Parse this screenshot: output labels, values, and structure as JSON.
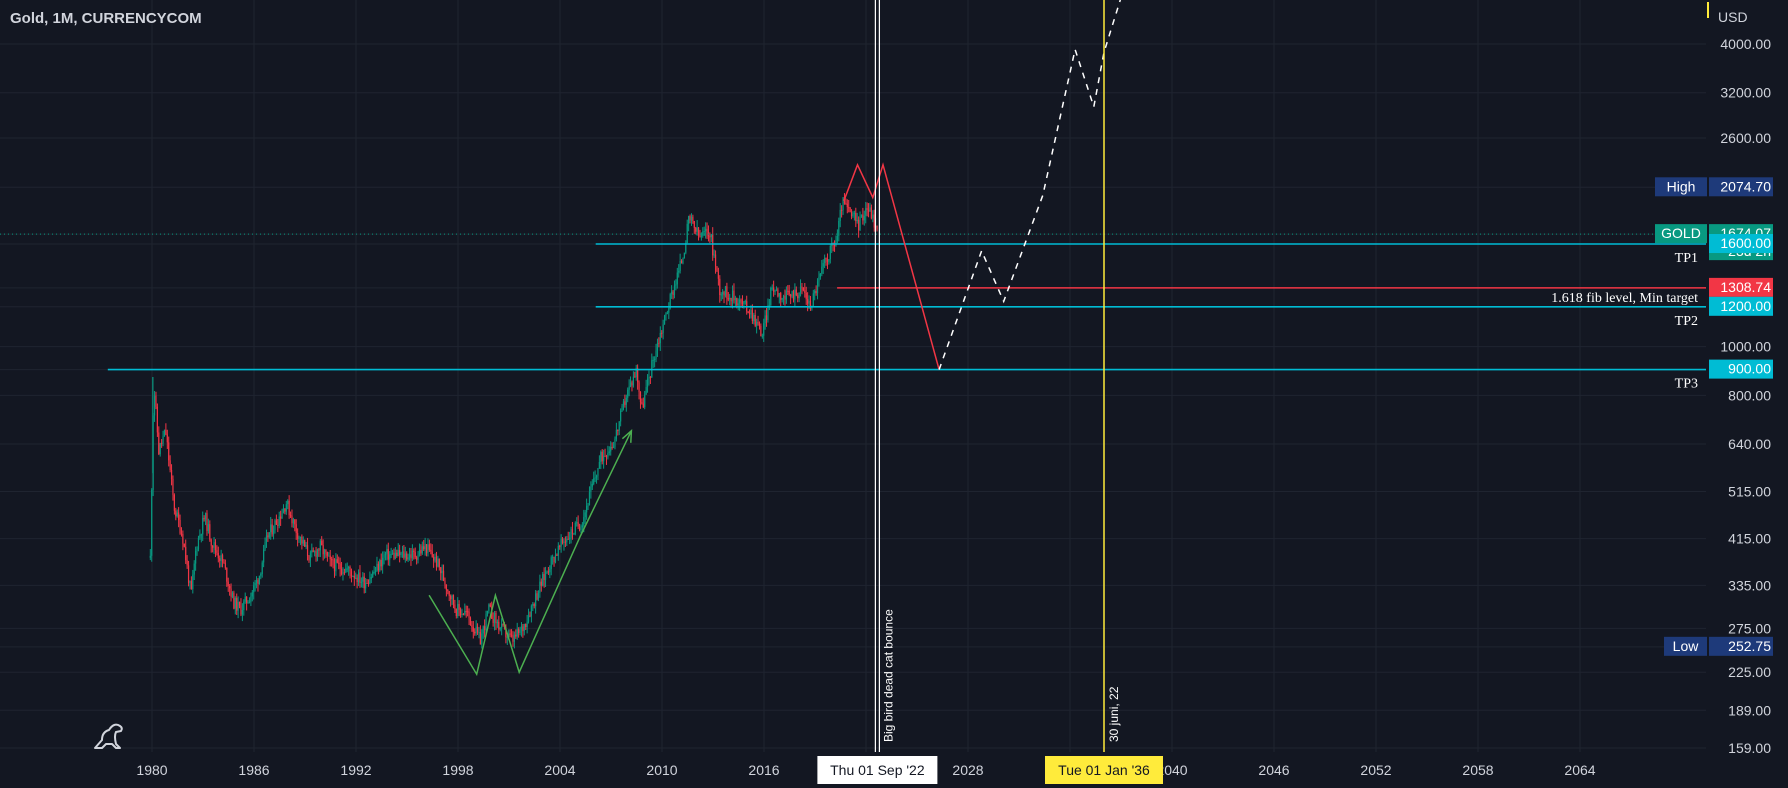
{
  "header": {
    "title": "Gold, 1M, CURRENCYCOM"
  },
  "chart_data": {
    "type": "candlestick",
    "symbol": "GOLD",
    "interval": "1M",
    "source": "CURRENCYCOM",
    "yscale": "log",
    "currency": "USD",
    "x_range": [
      1977.3,
      2071.2
    ],
    "y_range": [
      158,
      5000
    ],
    "x_ticks": [
      "1980",
      "1986",
      "1992",
      "1998",
      "2004",
      "2010",
      "2016",
      "2022",
      "2028",
      "2034",
      "2040",
      "2046",
      "2052",
      "2058",
      "2064"
    ],
    "y_ticks": [
      "4000.00",
      "3200.00",
      "2600.00",
      "2074.70",
      "1674.07",
      "1600.00",
      "1308.74",
      "1200.00",
      "1000.00",
      "900.00",
      "800.00",
      "640.00",
      "515.00",
      "415.00",
      "335.00",
      "275.00",
      "252.75",
      "225.00",
      "189.00",
      "159.00"
    ],
    "price_path": [
      [
        1979.9,
        380
      ],
      [
        1980.1,
        850
      ],
      [
        1980.4,
        620
      ],
      [
        1980.8,
        680
      ],
      [
        1981.3,
        480
      ],
      [
        1981.8,
        420
      ],
      [
        1982.3,
        320
      ],
      [
        1982.6,
        400
      ],
      [
        1983.1,
        460
      ],
      [
        1983.5,
        410
      ],
      [
        1984.2,
        370
      ],
      [
        1984.8,
        310
      ],
      [
        1985.2,
        300
      ],
      [
        1985.8,
        320
      ],
      [
        1986.3,
        350
      ],
      [
        1986.8,
        420
      ],
      [
        1987.5,
        460
      ],
      [
        1987.9,
        490
      ],
      [
        1988.5,
        430
      ],
      [
        1989.3,
        380
      ],
      [
        1989.9,
        400
      ],
      [
        1990.5,
        370
      ],
      [
        1991.5,
        360
      ],
      [
        1992.5,
        340
      ],
      [
        1993.2,
        360
      ],
      [
        1993.7,
        385
      ],
      [
        1994.5,
        385
      ],
      [
        1995.5,
        385
      ],
      [
        1996.1,
        400
      ],
      [
        1996.8,
        370
      ],
      [
        1997.4,
        330
      ],
      [
        1997.9,
        300
      ],
      [
        1998.5,
        295
      ],
      [
        1999.3,
        260
      ],
      [
        1999.8,
        300
      ],
      [
        2000.5,
        275
      ],
      [
        2001.2,
        260
      ],
      [
        2001.8,
        275
      ],
      [
        2002.6,
        320
      ],
      [
        2003.4,
        370
      ],
      [
        2004.2,
        410
      ],
      [
        2005.3,
        450
      ],
      [
        2006.4,
        600
      ],
      [
        2007.2,
        650
      ],
      [
        2007.9,
        800
      ],
      [
        2008.5,
        900
      ],
      [
        2008.8,
        750
      ],
      [
        2009.5,
        950
      ],
      [
        2010.5,
        1250
      ],
      [
        2011.2,
        1500
      ],
      [
        2011.6,
        1800
      ],
      [
        2012.2,
        1650
      ],
      [
        2012.8,
        1700
      ],
      [
        2013.4,
        1300
      ],
      [
        2014.3,
        1250
      ],
      [
        2015.2,
        1180
      ],
      [
        2015.9,
        1060
      ],
      [
        2016.5,
        1320
      ],
      [
        2017.2,
        1250
      ],
      [
        2018.3,
        1300
      ],
      [
        2018.7,
        1200
      ],
      [
        2019.6,
        1480
      ],
      [
        2020.3,
        1650
      ],
      [
        2020.6,
        1950
      ],
      [
        2021.0,
        1850
      ],
      [
        2021.6,
        1750
      ],
      [
        2022.0,
        1900
      ],
      [
        2022.3,
        1850
      ],
      [
        2022.7,
        1674
      ]
    ],
    "horizontal_levels": [
      {
        "label": "TP1",
        "value": 1600
      },
      {
        "label": "TP2",
        "value": 1200
      },
      {
        "label": "TP3",
        "value": 900
      },
      {
        "label": "1.618 fib level, Min target",
        "value": 1308.74
      }
    ],
    "red_path": [
      [
        2020.7,
        1950
      ],
      [
        2021.5,
        2300
      ],
      [
        2022.4,
        1980
      ],
      [
        2023.0,
        2300
      ],
      [
        2026.3,
        900
      ]
    ],
    "projection_path": [
      [
        2026.3,
        900
      ],
      [
        2028.8,
        1550
      ],
      [
        2030.1,
        1230
      ],
      [
        2032.4,
        2000
      ],
      [
        2034.3,
        3900
      ],
      [
        2035.4,
        3000
      ],
      [
        2036.0,
        3850
      ],
      [
        2037.2,
        5200
      ]
    ],
    "green_path": [
      [
        1996.3,
        320
      ],
      [
        1999.1,
        223
      ],
      [
        2000.2,
        320
      ],
      [
        2001.6,
        225
      ],
      [
        2005.2,
        420
      ],
      [
        2008.2,
        680
      ]
    ],
    "vertical_lines": [
      {
        "date": "Thu 01 Sep '22",
        "text": "Big bird dead cat bounce",
        "color": "#ffffff"
      },
      {
        "date": "Tue 01 Jan '36",
        "text": "30 juni, 22",
        "color": "#ffeb3b"
      }
    ],
    "price_labels": [
      {
        "name": "High",
        "tag": "High",
        "value": "2074.70",
        "color": "#1e3a7a"
      },
      {
        "name": "Current",
        "tag": "GOLD",
        "value": "1674.07",
        "sub": "23d 2h",
        "color": "#089981"
      },
      {
        "name": "TP1",
        "value": "1600.00",
        "color": "#00bcd4"
      },
      {
        "name": "Fib",
        "value": "1308.74",
        "color": "#f23645"
      },
      {
        "name": "TP2",
        "value": "1200.00",
        "color": "#00bcd4"
      },
      {
        "name": "TP3",
        "value": "900.00",
        "color": "#00bcd4"
      },
      {
        "name": "Low",
        "tag": "Low",
        "value": "252.75",
        "color": "#1e3a7a"
      }
    ],
    "colors": {
      "background": "#131722",
      "grid": "#1f2430",
      "level": "#00bcd4",
      "fib": "#f23645",
      "red_path": "#f23645",
      "green_path": "#4caf50",
      "candle_up": "#089981",
      "candle_down": "#f23645",
      "projection": "#ffffff",
      "vline_yellow": "#ffeb3b"
    }
  }
}
